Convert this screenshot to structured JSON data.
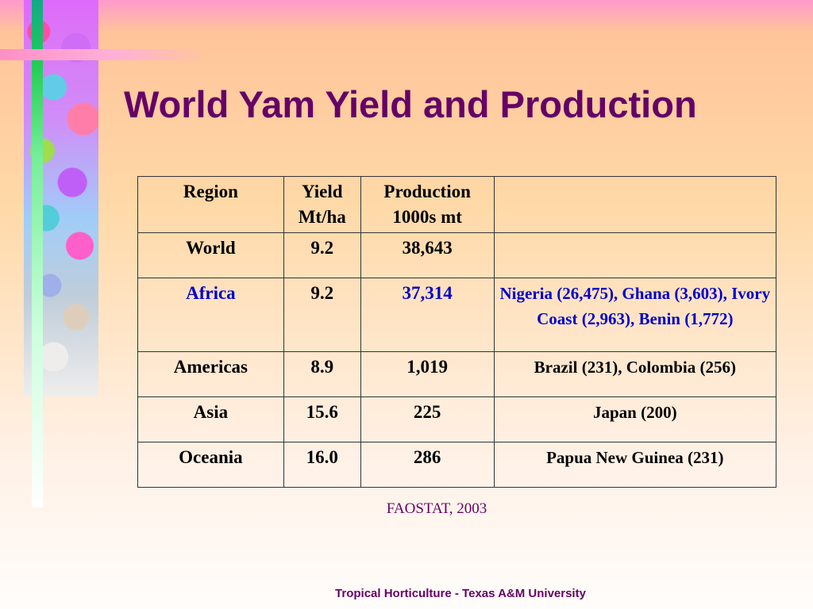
{
  "slide": {
    "title": "World Yam Yield and Production",
    "source": "FAOSTAT, 2003",
    "footer": "Tropical Horticulture - Texas A&M University"
  },
  "colors": {
    "title": "#660066",
    "highlight": "#0000cc"
  },
  "table": {
    "headers": {
      "region": "Region",
      "yield_line1": "Yield",
      "yield_line2": "Mt/ha",
      "production_line1": "Production",
      "production_line2": "1000s mt",
      "notes": ""
    },
    "rows": [
      {
        "region": "World",
        "yield": "9.2",
        "production": "38,643",
        "notes": ""
      },
      {
        "region": "Africa",
        "yield": "9.2",
        "production": "37,314",
        "notes": "Nigeria (26,475), Ghana (3,603), Ivory Coast (2,963), Benin (1,772)"
      },
      {
        "region": "Americas",
        "yield": "8.9",
        "production": "1,019",
        "notes": "Brazil (231), Colombia (256)"
      },
      {
        "region": "Asia",
        "yield": "15.6",
        "production": "225",
        "notes": "Japan (200)"
      },
      {
        "region": "Oceania",
        "yield": "16.0",
        "production": "286",
        "notes": "Papua New Guinea (231)"
      }
    ]
  }
}
